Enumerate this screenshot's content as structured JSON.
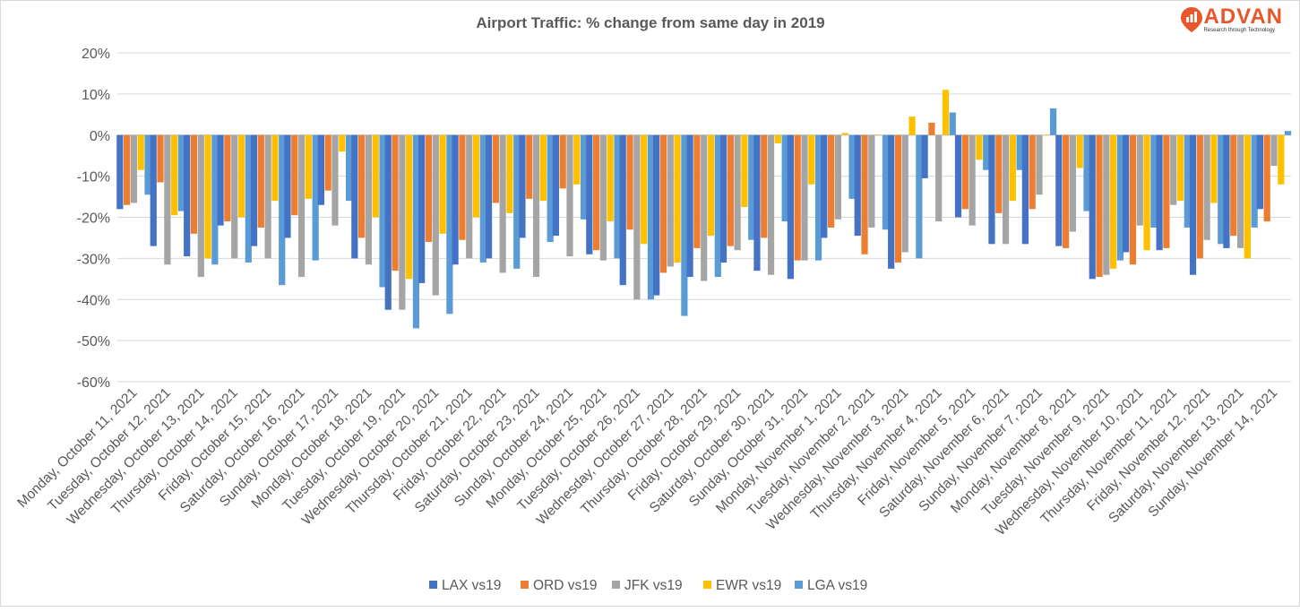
{
  "logo": {
    "brand": "ADVAN",
    "tagline": "Research through Technology",
    "color": "#e8562a"
  },
  "chart_data": {
    "type": "bar",
    "title": "Airport Traffic: % change from same day in 2019",
    "xlabel": "",
    "ylabel": "",
    "ylim": [
      -60,
      20
    ],
    "yticks": [
      20,
      10,
      0,
      -10,
      -20,
      -30,
      -40,
      -50,
      -60
    ],
    "ytick_format": "%",
    "grid": true,
    "legend": "bottom",
    "categories": [
      "Monday, October 11, 2021",
      "Tuesday, October 12, 2021",
      "Wednesday, October 13, 2021",
      "Thursday, October 14, 2021",
      "Friday, October 15, 2021",
      "Saturday, October 16, 2021",
      "Sunday, October 17, 2021",
      "Monday, October 18, 2021",
      "Tuesday, October 19, 2021",
      "Wednesday, October 20, 2021",
      "Thursday, October 21, 2021",
      "Friday, October 22, 2021",
      "Saturday, October 23, 2021",
      "Sunday, October 24, 2021",
      "Monday, October 25, 2021",
      "Tuesday, October 26, 2021",
      "Wednesday, October 27, 2021",
      "Thursday, October 28, 2021",
      "Friday, October 29, 2021",
      "Saturday, October 30, 2021",
      "Sunday, October 31, 2021",
      "Monday, November 1, 2021",
      "Tuesday, November 2, 2021",
      "Wednesday, November 3, 2021",
      "Thursday, November 4, 2021",
      "Friday, November 5, 2021",
      "Saturday, November 6, 2021",
      "Sunday, November 7, 2021",
      "Monday, November 8, 2021",
      "Tuesday, November 9, 2021",
      "Wednesday, November 10, 2021",
      "Thursday, November 11, 2021",
      "Friday, November 12, 2021",
      "Saturday, November 13, 2021",
      "Sunday, November 14, 2021"
    ],
    "series": [
      {
        "name": "LAX vs19",
        "color": "#4472c4",
        "values": [
          -18,
          -27,
          -29.5,
          -22,
          -27,
          -25,
          -17,
          -30,
          -42.5,
          -36,
          -31.5,
          -30,
          -25,
          -24.5,
          -29,
          -36.5,
          -39,
          -34.5,
          -31,
          -33,
          -35,
          -25,
          -24.5,
          -32.5,
          -10.5,
          -20,
          -26.5,
          -26.5,
          -27,
          -35,
          -28.5,
          -28,
          -34,
          -27.5,
          -18
        ]
      },
      {
        "name": "ORD vs19",
        "color": "#ed7d31",
        "values": [
          -17,
          -11.5,
          -24,
          -21,
          -22.5,
          -19.5,
          -13.5,
          -25,
          -33,
          -26,
          -25.5,
          -16.5,
          -15.5,
          -13,
          -28,
          -23,
          -33.5,
          -27.5,
          -27,
          -25,
          -30.5,
          -22.5,
          -29,
          -31,
          3,
          -18,
          -19,
          -18,
          -27.5,
          -34.5,
          -31.5,
          -27.5,
          -30,
          -24.5,
          -21
        ]
      },
      {
        "name": "JFK vs19",
        "color": "#a5a5a5",
        "values": [
          -16.5,
          -31.5,
          -34.5,
          -30,
          -30,
          -34.5,
          -22,
          -31.5,
          -42.5,
          -39,
          -30,
          -33.5,
          -34.5,
          -29.5,
          -30.5,
          -40,
          -32,
          -35.5,
          -28,
          -34,
          -30.5,
          -20.5,
          -22.5,
          -28.5,
          -21,
          -22,
          -26.5,
          -14.5,
          -23.5,
          -34,
          -22,
          -17,
          -25.5,
          -27.5,
          -7.5
        ]
      },
      {
        "name": "EWR vs19",
        "color": "#ffc000",
        "values": [
          -8.5,
          -19.5,
          -30,
          -20,
          -16,
          -15.5,
          -4,
          -20,
          -35,
          -24,
          -20,
          -19,
          -16,
          -12,
          -21,
          -26.5,
          -31,
          -24.5,
          -17.5,
          -2,
          -12,
          0.5,
          0,
          4.5,
          11,
          -6,
          -16,
          0,
          -8,
          -32.5,
          -28,
          -16,
          -16.5,
          -30,
          -12
        ]
      },
      {
        "name": "LGA vs19",
        "color": "#5b9bd5",
        "values": [
          -14.5,
          -18.5,
          -31.5,
          -31,
          -36.5,
          -30.5,
          -16,
          -37,
          -47,
          -43.5,
          -31,
          -32.5,
          -26,
          -20.5,
          -30,
          -40,
          -44,
          -34.5,
          -25.5,
          -21,
          -30.5,
          -15.5,
          -23,
          -30,
          5.5,
          -8.5,
          -8.5,
          6.5,
          -18.5,
          -30.5,
          -22.5,
          -22.5,
          -26.5,
          -22.5,
          1
        ]
      }
    ]
  }
}
